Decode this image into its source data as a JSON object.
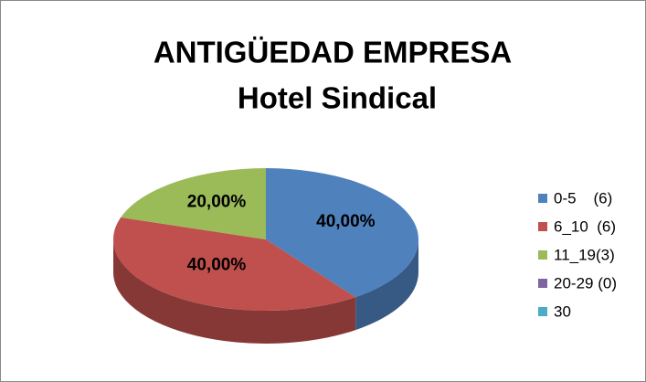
{
  "chart_data": {
    "type": "pie3d",
    "title": "ANTIGÜEDAD EMPRESA",
    "subtitle": "Hotel Sindical",
    "categories": [
      "0-5    (6)",
      "6_10  (6)",
      "11_19(3)",
      "20-29 (0)",
      "30"
    ],
    "values": [
      40,
      40,
      20,
      0,
      0
    ],
    "value_labels": [
      "40,00%",
      "40,00%",
      "20,00%",
      null,
      null
    ],
    "colors": [
      "#4f81bd",
      "#c0504d",
      "#9bbb59",
      "#8064a2",
      "#4bacc6"
    ],
    "legend": "right"
  }
}
